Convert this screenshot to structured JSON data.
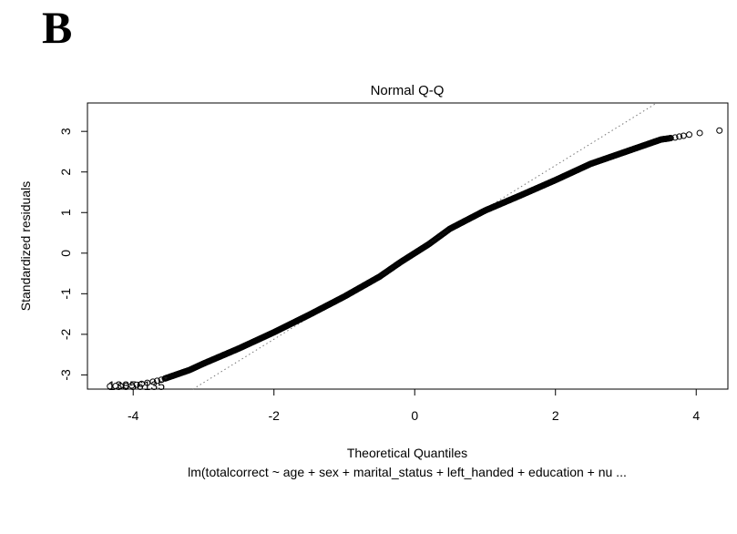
{
  "panel_label": "B",
  "chart_data": {
    "type": "scatter",
    "title": "Normal Q-Q",
    "xlabel": "Theoretical Quantiles",
    "ylabel": "Standardized residuals",
    "subtitle": "lm(totalcorrect ~ age + sex + marital_status + left_handed + education + nu ...",
    "xlim": [
      -4.65,
      4.45
    ],
    "ylim": [
      -3.35,
      3.7
    ],
    "xticks": [
      -4,
      -2,
      0,
      2,
      4
    ],
    "yticks": [
      -3,
      -2,
      -1,
      0,
      1,
      2,
      3
    ],
    "grid": false,
    "point_label": "13856135",
    "reference_line": {
      "slope": 1.07,
      "intercept": 0.02,
      "style": "dotted"
    },
    "quantile_curve": [
      [
        -4.33,
        -3.28
      ],
      [
        -4.0,
        -3.26
      ],
      [
        -3.75,
        -3.18
      ],
      [
        -3.6,
        -3.12
      ],
      [
        -3.4,
        -3.0
      ],
      [
        -3.2,
        -2.88
      ],
      [
        -3.0,
        -2.72
      ],
      [
        -2.5,
        -2.35
      ],
      [
        -2.0,
        -1.95
      ],
      [
        -1.5,
        -1.52
      ],
      [
        -1.0,
        -1.07
      ],
      [
        -0.5,
        -0.58
      ],
      [
        -0.2,
        -0.22
      ],
      [
        0.0,
        0.0
      ],
      [
        0.2,
        0.22
      ],
      [
        0.5,
        0.6
      ],
      [
        1.0,
        1.05
      ],
      [
        1.5,
        1.42
      ],
      [
        2.0,
        1.8
      ],
      [
        2.5,
        2.2
      ],
      [
        3.0,
        2.5
      ],
      [
        3.5,
        2.8
      ],
      [
        3.7,
        2.85
      ],
      [
        3.9,
        2.92
      ],
      [
        4.05,
        2.96
      ]
    ],
    "outliers": [
      [
        4.33,
        3.02
      ]
    ]
  }
}
